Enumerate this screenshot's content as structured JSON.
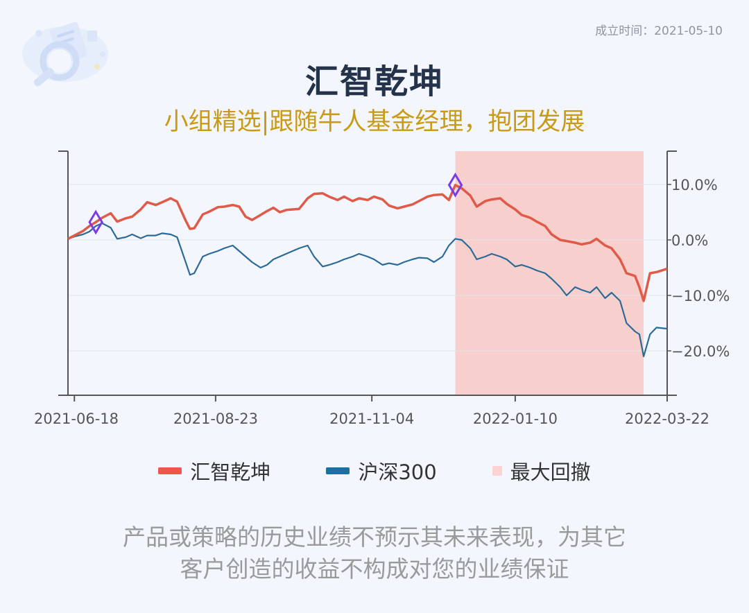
{
  "header": {
    "founded": "成立时间：2021-05-10",
    "title": "汇智乾坤",
    "subtitle": "小组精选|跟随牛人基金经理，抱团发展"
  },
  "legend": [
    {
      "label": "汇智乾坤",
      "color": "#f0574a"
    },
    {
      "label": "沪深300",
      "color": "#1a6fa3"
    },
    {
      "label": "最大回撤",
      "color": "#fbd3d3"
    }
  ],
  "disclaimer": {
    "line1": "产品或策略的历史业绩不预示其未来表现，为其它",
    "line2": "客户创造的收益不构成对您的业绩保证"
  },
  "chart_data": {
    "type": "line",
    "x_range": [
      "2021-06-15",
      "2022-03-22"
    ],
    "x_ticks": [
      "2021-06-18",
      "2021-08-23",
      "2021-11-04",
      "2022-01-10",
      "2022-03-22"
    ],
    "y_ticks": [
      10,
      0,
      -10,
      -20
    ],
    "y_tick_labels": [
      "10.0%",
      "0.0%",
      "−10.0%",
      "−20.0%"
    ],
    "ylim": [
      -28,
      16
    ],
    "grid": true,
    "series": [
      {
        "name": "汇智乾坤",
        "color": "#e05a48",
        "points": [
          [
            "2021-06-15",
            0.2
          ],
          [
            "2021-06-18",
            0.8
          ],
          [
            "2021-06-22",
            1.6
          ],
          [
            "2021-06-25",
            2.5
          ],
          [
            "2021-06-28",
            3.2
          ],
          [
            "2021-07-01",
            4.0
          ],
          [
            "2021-07-05",
            4.8
          ],
          [
            "2021-07-08",
            3.3
          ],
          [
            "2021-07-12",
            3.9
          ],
          [
            "2021-07-15",
            4.2
          ],
          [
            "2021-07-19",
            5.5
          ],
          [
            "2021-07-22",
            6.8
          ],
          [
            "2021-07-26",
            6.3
          ],
          [
            "2021-07-29",
            6.8
          ],
          [
            "2021-08-02",
            7.5
          ],
          [
            "2021-08-05",
            6.9
          ],
          [
            "2021-08-09",
            3.5
          ],
          [
            "2021-08-11",
            2.0
          ],
          [
            "2021-08-13",
            2.1
          ],
          [
            "2021-08-17",
            4.6
          ],
          [
            "2021-08-20",
            5.1
          ],
          [
            "2021-08-24",
            5.9
          ],
          [
            "2021-08-27",
            6.0
          ],
          [
            "2021-08-31",
            6.3
          ],
          [
            "2021-09-03",
            6.0
          ],
          [
            "2021-09-06",
            4.2
          ],
          [
            "2021-09-09",
            3.6
          ],
          [
            "2021-09-13",
            4.5
          ],
          [
            "2021-09-16",
            5.2
          ],
          [
            "2021-09-19",
            5.8
          ],
          [
            "2021-09-22",
            5.0
          ],
          [
            "2021-09-25",
            5.4
          ],
          [
            "2021-09-28",
            5.5
          ],
          [
            "2021-10-01",
            5.6
          ],
          [
            "2021-10-05",
            7.5
          ],
          [
            "2021-10-08",
            8.3
          ],
          [
            "2021-10-12",
            8.4
          ],
          [
            "2021-10-15",
            7.8
          ],
          [
            "2021-10-19",
            7.2
          ],
          [
            "2021-10-22",
            7.8
          ],
          [
            "2021-10-26",
            7.0
          ],
          [
            "2021-10-29",
            7.5
          ],
          [
            "2021-11-02",
            7.2
          ],
          [
            "2021-11-05",
            7.8
          ],
          [
            "2021-11-09",
            7.3
          ],
          [
            "2021-11-12",
            6.2
          ],
          [
            "2021-11-16",
            5.7
          ],
          [
            "2021-11-19",
            6.0
          ],
          [
            "2021-11-23",
            6.4
          ],
          [
            "2021-11-26",
            7.0
          ],
          [
            "2021-11-30",
            7.8
          ],
          [
            "2021-12-03",
            8.1
          ],
          [
            "2021-12-07",
            8.2
          ],
          [
            "2021-12-10",
            7.2
          ],
          [
            "2021-12-13",
            9.9
          ],
          [
            "2021-12-16",
            9.3
          ],
          [
            "2021-12-20",
            8.0
          ],
          [
            "2021-12-23",
            6.0
          ],
          [
            "2021-12-27",
            7.0
          ],
          [
            "2021-12-30",
            7.3
          ],
          [
            "2022-01-03",
            7.5
          ],
          [
            "2022-01-06",
            6.5
          ],
          [
            "2022-01-10",
            5.5
          ],
          [
            "2022-01-13",
            4.5
          ],
          [
            "2022-01-17",
            4.0
          ],
          [
            "2022-01-20",
            3.3
          ],
          [
            "2022-01-24",
            2.5
          ],
          [
            "2022-01-27",
            1.0
          ],
          [
            "2022-01-31",
            0.0
          ],
          [
            "2022-02-03",
            -0.2
          ],
          [
            "2022-02-07",
            -0.5
          ],
          [
            "2022-02-10",
            -0.8
          ],
          [
            "2022-02-14",
            -0.5
          ],
          [
            "2022-02-17",
            0.2
          ],
          [
            "2022-02-21",
            -1.0
          ],
          [
            "2022-02-24",
            -1.5
          ],
          [
            "2022-02-28",
            -3.5
          ],
          [
            "2022-03-03",
            -6.0
          ],
          [
            "2022-03-07",
            -6.5
          ],
          [
            "2022-03-09",
            -8.5
          ],
          [
            "2022-03-11",
            -11.0
          ],
          [
            "2022-03-14",
            -6.0
          ],
          [
            "2022-03-17",
            -5.8
          ],
          [
            "2022-03-22",
            -5.2
          ]
        ]
      },
      {
        "name": "沪深300",
        "color": "#2b6a97",
        "points": [
          [
            "2021-06-15",
            0.2
          ],
          [
            "2021-06-18",
            0.6
          ],
          [
            "2021-06-22",
            1.0
          ],
          [
            "2021-06-25",
            1.5
          ],
          [
            "2021-06-28",
            2.5
          ],
          [
            "2021-07-01",
            3.0
          ],
          [
            "2021-07-05",
            2.2
          ],
          [
            "2021-07-08",
            0.2
          ],
          [
            "2021-07-12",
            0.5
          ],
          [
            "2021-07-15",
            1.0
          ],
          [
            "2021-07-19",
            0.3
          ],
          [
            "2021-07-22",
            0.8
          ],
          [
            "2021-07-26",
            0.8
          ],
          [
            "2021-07-29",
            1.2
          ],
          [
            "2021-08-02",
            1.0
          ],
          [
            "2021-08-05",
            0.5
          ],
          [
            "2021-08-09",
            -4.0
          ],
          [
            "2021-08-11",
            -6.3
          ],
          [
            "2021-08-13",
            -6.0
          ],
          [
            "2021-08-17",
            -3.0
          ],
          [
            "2021-08-20",
            -2.5
          ],
          [
            "2021-08-24",
            -2.0
          ],
          [
            "2021-08-27",
            -1.5
          ],
          [
            "2021-08-31",
            -1.0
          ],
          [
            "2021-09-03",
            -2.0
          ],
          [
            "2021-09-06",
            -3.0
          ],
          [
            "2021-09-09",
            -4.0
          ],
          [
            "2021-09-13",
            -5.0
          ],
          [
            "2021-09-16",
            -4.5
          ],
          [
            "2021-09-19",
            -3.5
          ],
          [
            "2021-09-22",
            -3.0
          ],
          [
            "2021-09-25",
            -2.5
          ],
          [
            "2021-09-28",
            -2.0
          ],
          [
            "2021-10-01",
            -1.5
          ],
          [
            "2021-10-05",
            -1.0
          ],
          [
            "2021-10-08",
            -3.0
          ],
          [
            "2021-10-12",
            -4.8
          ],
          [
            "2021-10-15",
            -4.5
          ],
          [
            "2021-10-19",
            -4.0
          ],
          [
            "2021-10-22",
            -3.5
          ],
          [
            "2021-10-26",
            -3.0
          ],
          [
            "2021-10-29",
            -2.5
          ],
          [
            "2021-11-02",
            -3.0
          ],
          [
            "2021-11-05",
            -3.5
          ],
          [
            "2021-11-09",
            -4.5
          ],
          [
            "2021-11-12",
            -4.2
          ],
          [
            "2021-11-16",
            -4.5
          ],
          [
            "2021-11-19",
            -4.0
          ],
          [
            "2021-11-23",
            -3.5
          ],
          [
            "2021-11-26",
            -3.2
          ],
          [
            "2021-11-30",
            -3.3
          ],
          [
            "2021-12-03",
            -4.0
          ],
          [
            "2021-12-07",
            -3.0
          ],
          [
            "2021-12-10",
            -1.0
          ],
          [
            "2021-12-13",
            0.2
          ],
          [
            "2021-12-16",
            0.0
          ],
          [
            "2021-12-20",
            -1.5
          ],
          [
            "2021-12-23",
            -3.5
          ],
          [
            "2021-12-27",
            -3.0
          ],
          [
            "2021-12-30",
            -2.5
          ],
          [
            "2022-01-03",
            -3.0
          ],
          [
            "2022-01-06",
            -3.5
          ],
          [
            "2022-01-10",
            -4.8
          ],
          [
            "2022-01-13",
            -4.5
          ],
          [
            "2022-01-17",
            -5.0
          ],
          [
            "2022-01-20",
            -5.5
          ],
          [
            "2022-01-24",
            -6.0
          ],
          [
            "2022-01-27",
            -7.0
          ],
          [
            "2022-01-31",
            -8.5
          ],
          [
            "2022-02-03",
            -10.0
          ],
          [
            "2022-02-07",
            -8.5
          ],
          [
            "2022-02-10",
            -9.0
          ],
          [
            "2022-02-14",
            -9.5
          ],
          [
            "2022-02-17",
            -8.5
          ],
          [
            "2022-02-21",
            -10.5
          ],
          [
            "2022-02-24",
            -9.5
          ],
          [
            "2022-02-28",
            -11.0
          ],
          [
            "2022-03-03",
            -15.0
          ],
          [
            "2022-03-07",
            -16.5
          ],
          [
            "2022-03-09",
            -17.0
          ],
          [
            "2022-03-11",
            -21.0
          ],
          [
            "2022-03-14",
            -17.0
          ],
          [
            "2022-03-17",
            -15.8
          ],
          [
            "2022-03-22",
            -16.0
          ]
        ]
      }
    ],
    "max_drawdown": {
      "name": "最大回撤",
      "start": "2021-12-13",
      "end": "2022-03-11",
      "color": "#f7cfcc"
    },
    "markers": [
      {
        "date": "2021-06-28",
        "value": 3.2,
        "series": "汇智乾坤",
        "color": "#7a3ce6"
      },
      {
        "date": "2021-12-13",
        "value": 9.9,
        "series": "汇智乾坤",
        "color": "#7a3ce6"
      }
    ]
  }
}
